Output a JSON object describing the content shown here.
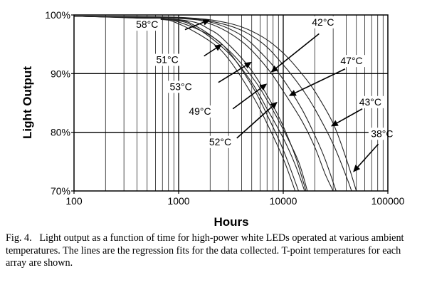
{
  "chart_data": {
    "type": "line",
    "xlabel": "Hours",
    "ylabel": "Light Output",
    "xscale": "log",
    "xlim": [
      100,
      100000
    ],
    "ylim": [
      70,
      100
    ],
    "x_ticks": [
      100,
      1000,
      10000,
      100000
    ],
    "x_tick_labels": [
      "100",
      "1000",
      "10000",
      "100000"
    ],
    "y_ticks": [
      70,
      80,
      90,
      100
    ],
    "y_tick_labels": [
      "70%",
      "80%",
      "90%",
      "100%"
    ],
    "grid": true,
    "legend": "none",
    "line_color": "#222222",
    "series": [
      {
        "name": "58°C",
        "x": [
          100,
          600,
          1000,
          2000,
          3000,
          5000,
          7000,
          10000,
          13000
        ],
        "y": [
          99.8,
          99.3,
          98.5,
          95.5,
          92.5,
          86.5,
          81.5,
          75.5,
          70
        ]
      },
      {
        "name": "51°C",
        "x": [
          100,
          600,
          1000,
          2000,
          3000,
          5000,
          7000,
          10000,
          14000
        ],
        "y": [
          99.8,
          99.4,
          98.8,
          96.5,
          93.8,
          88,
          83,
          77,
          70
        ]
      },
      {
        "name": "53°C",
        "x": [
          100,
          800,
          1500,
          3000,
          5000,
          7000,
          10000,
          13000,
          16000
        ],
        "y": [
          99.8,
          99.2,
          97.7,
          93.5,
          88.5,
          84,
          79,
          74.5,
          70
        ]
      },
      {
        "name": "49°C",
        "x": [
          100,
          800,
          1500,
          3000,
          5000,
          7000,
          10000,
          14000,
          17000
        ],
        "y": [
          99.8,
          99.3,
          98,
          94,
          89.5,
          85.5,
          80.5,
          75,
          70
        ]
      },
      {
        "name": "52°C",
        "x": [
          100,
          1000,
          2000,
          3000,
          5000,
          8000,
          10000,
          13000,
          16500
        ],
        "y": [
          99.8,
          99.2,
          97.5,
          95,
          90.5,
          84.5,
          81,
          76,
          70
        ]
      },
      {
        "name": "42°C",
        "x": [
          100,
          1000,
          2000,
          4000,
          7000,
          10000,
          15000,
          20000,
          25000,
          30000
        ],
        "y": [
          99.8,
          99.4,
          98.5,
          95.5,
          91,
          87,
          82,
          77.5,
          73,
          70
        ]
      },
      {
        "name": "47°C",
        "x": [
          100,
          1000,
          2000,
          4000,
          7000,
          10000,
          15000,
          20000,
          25000,
          32000
        ],
        "y": [
          99.8,
          99.5,
          98.8,
          96.5,
          92.5,
          89,
          84,
          79.5,
          75.5,
          70
        ]
      },
      {
        "name": "43°C",
        "x": [
          100,
          1000,
          3000,
          6000,
          10000,
          15000,
          20000,
          30000,
          40000,
          45000
        ],
        "y": [
          99.8,
          99.5,
          98.2,
          95.5,
          91.5,
          87.5,
          84,
          78,
          72.5,
          70
        ]
      },
      {
        "name": "38°C",
        "x": [
          100,
          1000,
          3000,
          6000,
          10000,
          15000,
          20000,
          30000,
          40000,
          50000
        ],
        "y": [
          99.8,
          99.6,
          98.6,
          96.5,
          93.5,
          90,
          87,
          81.5,
          75.5,
          70
        ]
      }
    ],
    "annotations": [
      {
        "label": "58°C",
        "text_at": [
          500,
          97.8
        ],
        "arrow_from": [
          1150,
          97.5
        ],
        "arrow_to": [
          2000,
          99.2
        ]
      },
      {
        "label": "51°C",
        "text_at": [
          780,
          91.8
        ],
        "arrow_from": [
          1750,
          93.0
        ],
        "arrow_to": [
          2600,
          95.0
        ]
      },
      {
        "label": "53°C",
        "text_at": [
          1050,
          87.2
        ],
        "arrow_from": [
          2400,
          88.5
        ],
        "arrow_to": [
          5000,
          92.0
        ]
      },
      {
        "label": "49°C",
        "text_at": [
          1600,
          83.0
        ],
        "arrow_from": [
          3300,
          84.0
        ],
        "arrow_to": [
          7000,
          88.3
        ]
      },
      {
        "label": "52°C",
        "text_at": [
          2500,
          77.8
        ],
        "arrow_from": [
          3600,
          79.0
        ],
        "arrow_to": [
          8800,
          85.2
        ]
      },
      {
        "label": "42°C",
        "text_at": [
          24000,
          98.2
        ],
        "arrow_from": [
          22000,
          96.8
        ],
        "arrow_to": [
          7600,
          90.2
        ]
      },
      {
        "label": "47°C",
        "text_at": [
          45000,
          91.6
        ],
        "arrow_from": [
          39000,
          90.8
        ],
        "arrow_to": [
          11300,
          86.2
        ]
      },
      {
        "label": "43°C",
        "text_at": [
          68000,
          84.6
        ],
        "arrow_from": [
          57000,
          84.0
        ],
        "arrow_to": [
          28500,
          81.0
        ]
      },
      {
        "label": "38°C",
        "text_at": [
          88000,
          79.2
        ],
        "arrow_from": [
          81000,
          78.0
        ],
        "arrow_to": [
          46500,
          73.2
        ]
      }
    ]
  },
  "caption": {
    "fig_label": "Fig. 4.",
    "text": "Light output as a function of time for high-power white LEDs operated at various ambient temperatures. The lines are the regression fits for the data collected. T-point temperatures for each array are shown."
  }
}
